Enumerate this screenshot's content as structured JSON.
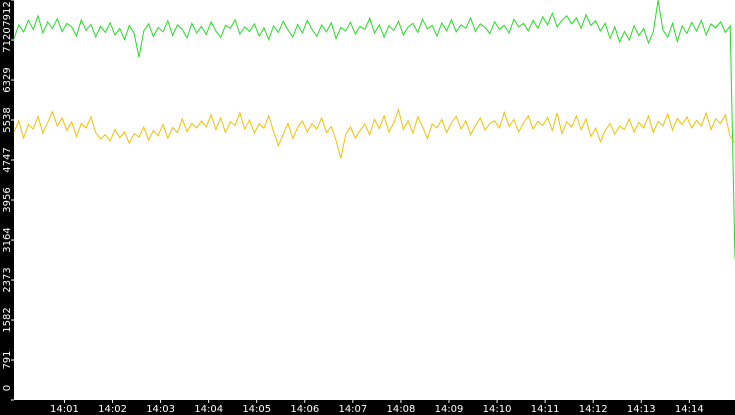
{
  "chart_data": {
    "type": "line",
    "series": [
      {
        "color": "#22dd22",
        "values": [
          7150,
          7420,
          7280,
          7510,
          7330,
          7600,
          7260,
          7480,
          7350,
          7540,
          7290,
          7450,
          7380,
          7200,
          7520,
          7310,
          7430,
          7180,
          7390,
          7270,
          7460,
          7220,
          7350,
          7130,
          7410,
          7250,
          6780,
          7300,
          7440,
          7190,
          7370,
          7280,
          7500,
          7210,
          7420,
          7330,
          7160,
          7450,
          7260,
          7390,
          7230,
          7480,
          7300,
          7170,
          7410,
          7350,
          7520,
          7240,
          7380,
          7290,
          7440,
          7200,
          7360,
          7130,
          7400,
          7270,
          7490,
          7320,
          7180,
          7430,
          7260,
          7510,
          7330,
          7190,
          7420,
          7280,
          7460,
          7150,
          7370,
          7300,
          7470,
          7240,
          7390,
          7330,
          7550,
          7260,
          7420,
          7180,
          7400,
          7310,
          7490,
          7220,
          7380,
          7450,
          7270,
          7530,
          7340,
          7410,
          7200,
          7460,
          7300,
          7520,
          7280,
          7420,
          7350,
          7560,
          7290,
          7440,
          7370,
          7250,
          7480,
          7330,
          7410,
          7260,
          7530,
          7380,
          7450,
          7300,
          7510,
          7350,
          7580,
          7420,
          7650,
          7380,
          7510,
          7600,
          7440,
          7560,
          7350,
          7620,
          7410,
          7500,
          7300,
          7450,
          7150,
          7380,
          7080,
          7290,
          7120,
          7400,
          7210,
          7350,
          7060,
          7280,
          7910,
          7320,
          7180,
          7450,
          7090,
          7400,
          7250,
          7470,
          7300,
          7510,
          7220,
          7440,
          7360,
          7480,
          7270,
          7400,
          2800
        ]
      },
      {
        "color": "#f0c000",
        "values": [
          5300,
          5520,
          5180,
          5450,
          5360,
          5610,
          5280,
          5490,
          5700,
          5420,
          5580,
          5330,
          5500,
          5210,
          5470,
          5380,
          5600,
          5290,
          5160,
          5250,
          5120,
          5350,
          5190,
          5300,
          5080,
          5270,
          5200,
          5400,
          5140,
          5330,
          5230,
          5450,
          5180,
          5390,
          5290,
          5560,
          5310,
          5470,
          5380,
          5520,
          5400,
          5640,
          5350,
          5580,
          5290,
          5500,
          5430,
          5680,
          5360,
          5540,
          5280,
          5460,
          5380,
          5620,
          5310,
          5030,
          5250,
          5470,
          5170,
          5390,
          5520,
          5300,
          5470,
          5360,
          5580,
          5290,
          5410,
          5130,
          4780,
          5250,
          5400,
          5180,
          5330,
          5460,
          5250,
          5550,
          5370,
          5620,
          5300,
          5480,
          5740,
          5350,
          5520,
          5280,
          5600,
          5410,
          5170,
          5460,
          5380,
          5550,
          5290,
          5480,
          5610,
          5360,
          5520,
          5250,
          5430,
          5580,
          5340,
          5470,
          5520,
          5380,
          5690,
          5410,
          5550,
          5300,
          5480,
          5620,
          5360,
          5510,
          5430,
          5590,
          5330,
          5680,
          5270,
          5500,
          5400,
          5620,
          5350,
          5560,
          5210,
          5380,
          5110,
          5330,
          5470,
          5260,
          5420,
          5350,
          5560,
          5300,
          5490,
          5380,
          5620,
          5290,
          5510,
          5420,
          5660,
          5340,
          5570,
          5450,
          5600,
          5380,
          5530,
          5420,
          5680,
          5350,
          5560,
          5470,
          5640,
          5200,
          5100
        ]
      }
    ],
    "xlim": [
      0,
      150
    ],
    "xticks": [
      {
        "value": 10.5,
        "label": "14:01"
      },
      {
        "value": 20.5,
        "label": "14:02"
      },
      {
        "value": 30.5,
        "label": "14:03"
      },
      {
        "value": 40.5,
        "label": "14:04"
      },
      {
        "value": 50.5,
        "label": "14:05"
      },
      {
        "value": 60.5,
        "label": "14:06"
      },
      {
        "value": 70.5,
        "label": "14:07"
      },
      {
        "value": 80.5,
        "label": "14:08"
      },
      {
        "value": 90.5,
        "label": "14:09"
      },
      {
        "value": 100.5,
        "label": "14:10"
      },
      {
        "value": 110.5,
        "label": "14:11"
      },
      {
        "value": 120.5,
        "label": "14:12"
      },
      {
        "value": 130.5,
        "label": "14:13"
      },
      {
        "value": 140.5,
        "label": "14:14"
      }
    ],
    "ylim": [
      0,
      7912
    ],
    "yticks": [
      0,
      791,
      1582,
      2373,
      3164,
      3956,
      4747,
      5538,
      6329,
      7120,
      7912
    ]
  }
}
